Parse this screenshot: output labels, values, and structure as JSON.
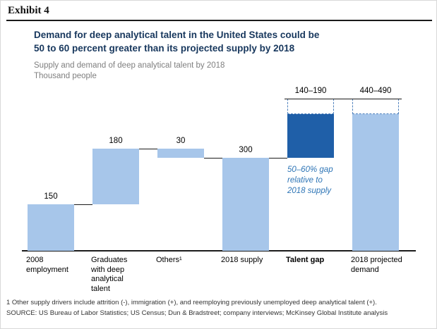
{
  "header": {
    "exhibit_label": "Exhibit 4",
    "title_lines": [
      "Demand for deep analytical talent in the United States could be",
      "50 to 60 percent greater than its projected supply by 2018"
    ],
    "subtitle": "Supply and demand of deep analytical talent by 2018",
    "unit_label": "Thousand people"
  },
  "annotation": {
    "lines": [
      "50–60% gap",
      "relative to",
      "2018 supply"
    ]
  },
  "footer": {
    "footnote": "1  Other supply drivers include attrition (-), immigration (+), and reemploying previously unemployed deep analytical talent (+).",
    "source": "SOURCE: US Bureau of Labor Statistics; US Census; Dun & Bradstreet; company interviews; McKinsey Global Institute analysis"
  },
  "colors": {
    "title_navy": "#17375d",
    "bar_light": "#a7c6ea",
    "bar_dark": "#1f5fa8",
    "dashed_outline": "#4f81bd",
    "annotation_blue": "#2e75b6",
    "muted_gray": "#7f7f7f"
  },
  "chart_data": {
    "type": "bar",
    "subtype": "waterfall",
    "title": "Demand for deep analytical talent in the United States could be 50 to 60 percent greater than its projected supply by 2018",
    "subtitle": "Supply and demand of deep analytical talent by 2018",
    "unit": "Thousand people",
    "ylim": [
      0,
      500
    ],
    "grid": false,
    "legend": false,
    "categories": [
      "2008 employment",
      "Graduates with deep analytical talent",
      "Others¹",
      "2018 supply",
      "Talent gap",
      "2018 projected demand"
    ],
    "bars": [
      {
        "category_lines": [
          "2008",
          "employment"
        ],
        "value_label": "150",
        "start": 0,
        "end": 150,
        "fill": "light"
      },
      {
        "category_lines": [
          "Graduates",
          "with deep",
          "analytical",
          "talent"
        ],
        "value_label": "180",
        "start": 150,
        "end": 330,
        "fill": "light"
      },
      {
        "category_lines": [
          "Others¹"
        ],
        "value_label": "30",
        "start": 300,
        "end": 330,
        "fill": "light"
      },
      {
        "category_lines": [
          "2018 supply"
        ],
        "value_label": "300",
        "start": 0,
        "end": 300,
        "fill": "light"
      },
      {
        "category_lines": [
          "Talent gap"
        ],
        "value_label": "140–190",
        "start": 300,
        "end": 440,
        "dashed_to": 490,
        "fill": "dark",
        "bold_category": true
      },
      {
        "category_lines": [
          "2018 projected",
          "demand"
        ],
        "value_label": "440–490",
        "start": 0,
        "end": 440,
        "dashed_to": 490,
        "fill": "light"
      }
    ],
    "connectors": [
      {
        "level": 150,
        "from": 0,
        "to": 1
      },
      {
        "level": 330,
        "from": 1,
        "to": 2
      },
      {
        "level": 300,
        "from": 2,
        "to": 3
      },
      {
        "level": 300,
        "from": 3,
        "to": 4
      },
      {
        "level": 490,
        "from": 4,
        "to": 5,
        "span": "full"
      }
    ]
  }
}
